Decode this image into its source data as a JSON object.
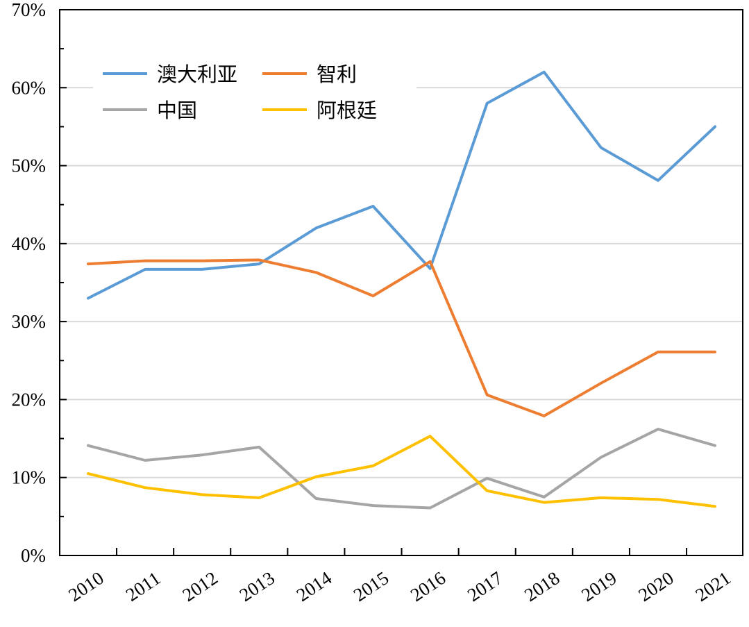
{
  "chart_data": {
    "type": "line",
    "title": "",
    "xlabel": "",
    "ylabel": "",
    "categories": [
      "2010",
      "2011",
      "2012",
      "2013",
      "2014",
      "2015",
      "2016",
      "2017",
      "2018",
      "2019",
      "2020",
      "2021"
    ],
    "ylim": [
      0,
      70
    ],
    "yticks": [
      "0%",
      "10%",
      "20%",
      "30%",
      "40%",
      "50%",
      "60%",
      "70%"
    ],
    "grid": true,
    "legend": "top-left",
    "series": [
      {
        "name": "澳大利亚",
        "color": "#5b9bd5",
        "values": [
          33,
          36.7,
          36.7,
          37.4,
          42,
          44.8,
          36.8,
          58,
          62,
          52.3,
          48.1,
          55
        ]
      },
      {
        "name": "智利",
        "color": "#ed7d31",
        "values": [
          37.4,
          37.8,
          37.8,
          37.9,
          36.3,
          33.3,
          37.7,
          20.6,
          17.9,
          22.1,
          26.1,
          26.1
        ]
      },
      {
        "name": "中国",
        "color": "#a5a5a5",
        "values": [
          14.1,
          12.2,
          12.9,
          13.9,
          7.3,
          6.4,
          6.1,
          9.9,
          7.5,
          12.6,
          16.2,
          14.1
        ]
      },
      {
        "name": "阿根廷",
        "color": "#ffc000",
        "values": [
          10.5,
          8.7,
          7.8,
          7.4,
          10.1,
          11.5,
          15.3,
          8.3,
          6.8,
          7.4,
          7.2,
          6.3
        ]
      }
    ]
  }
}
